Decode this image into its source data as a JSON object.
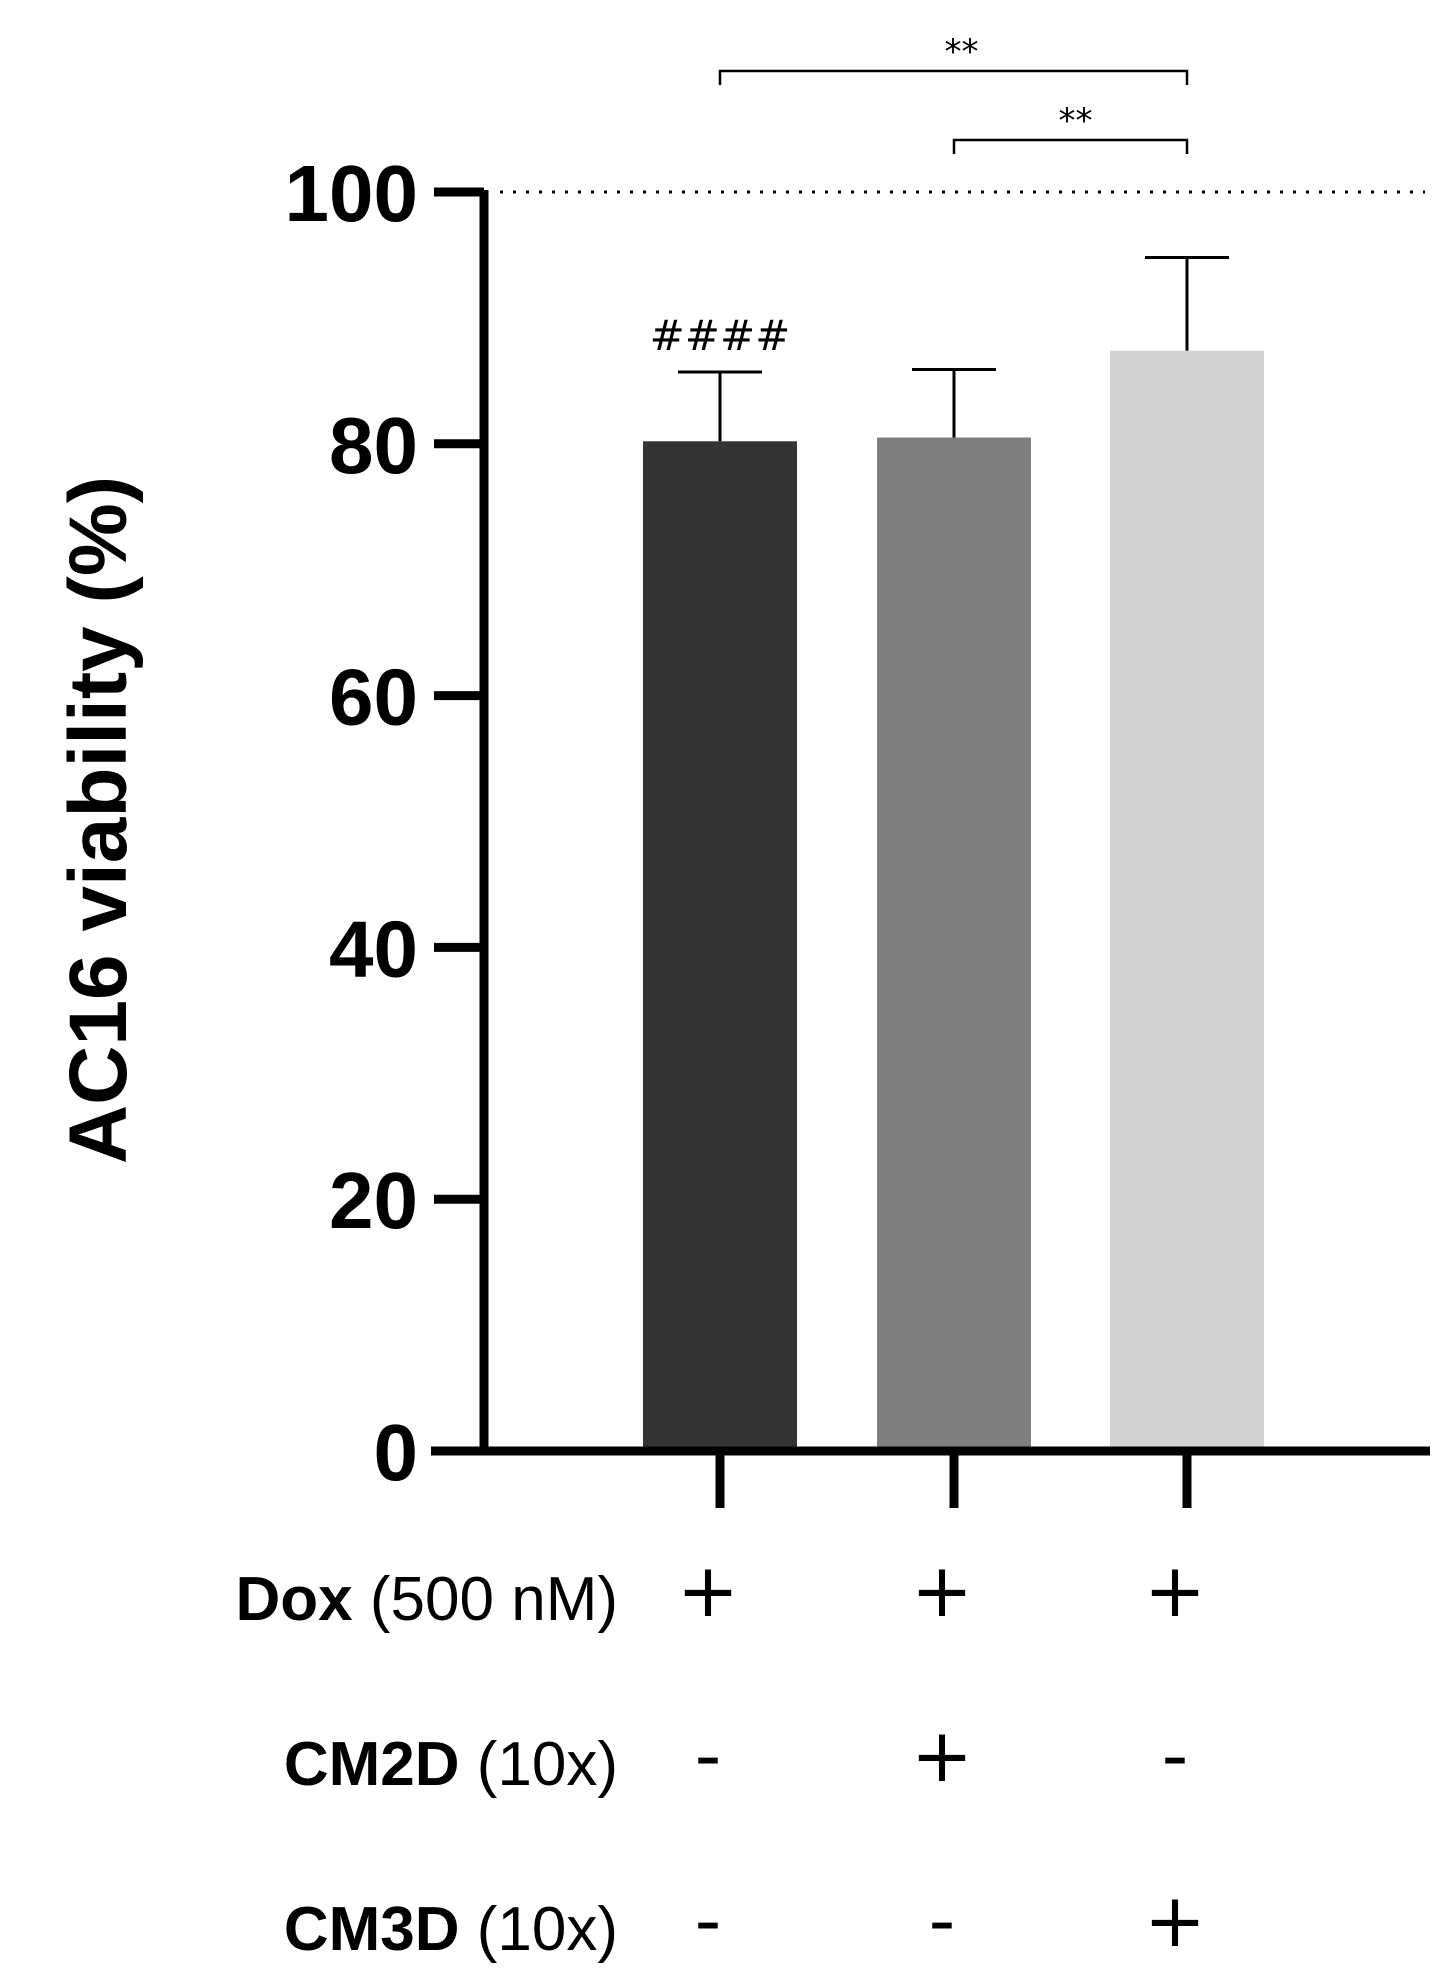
{
  "chart_data": {
    "type": "bar",
    "title": "",
    "xlabel": "",
    "ylabel": "AC16 viability (%)",
    "ylim": [
      0,
      100
    ],
    "yticks": [
      "0",
      "20",
      "40",
      "60",
      "80",
      "100"
    ],
    "reference_line": 100,
    "categories": [
      "Dox",
      "Dox + CM2D",
      "Dox + CM3D"
    ],
    "values": [
      80.2,
      80.5,
      87.4
    ],
    "errors": [
      5.5,
      5.4,
      7.4
    ],
    "bar_colors": [
      "#333333",
      "#7f7f7f",
      "#d3d3d3"
    ],
    "bar_annotations": [
      "####",
      "",
      ""
    ],
    "significance": [
      {
        "from": 0,
        "to": 2,
        "label": "**"
      },
      {
        "from": 1,
        "to": 2,
        "label": "**"
      }
    ],
    "conditions": [
      {
        "name": "Dox",
        "unit": "(500 nM)",
        "values": [
          "+",
          "+",
          "+"
        ]
      },
      {
        "name": "CM2D",
        "unit": "(10x)",
        "values": [
          "-",
          "+",
          "-"
        ]
      },
      {
        "name": "CM3D",
        "unit": "(10x)",
        "values": [
          "-",
          "-",
          "+"
        ]
      }
    ]
  }
}
